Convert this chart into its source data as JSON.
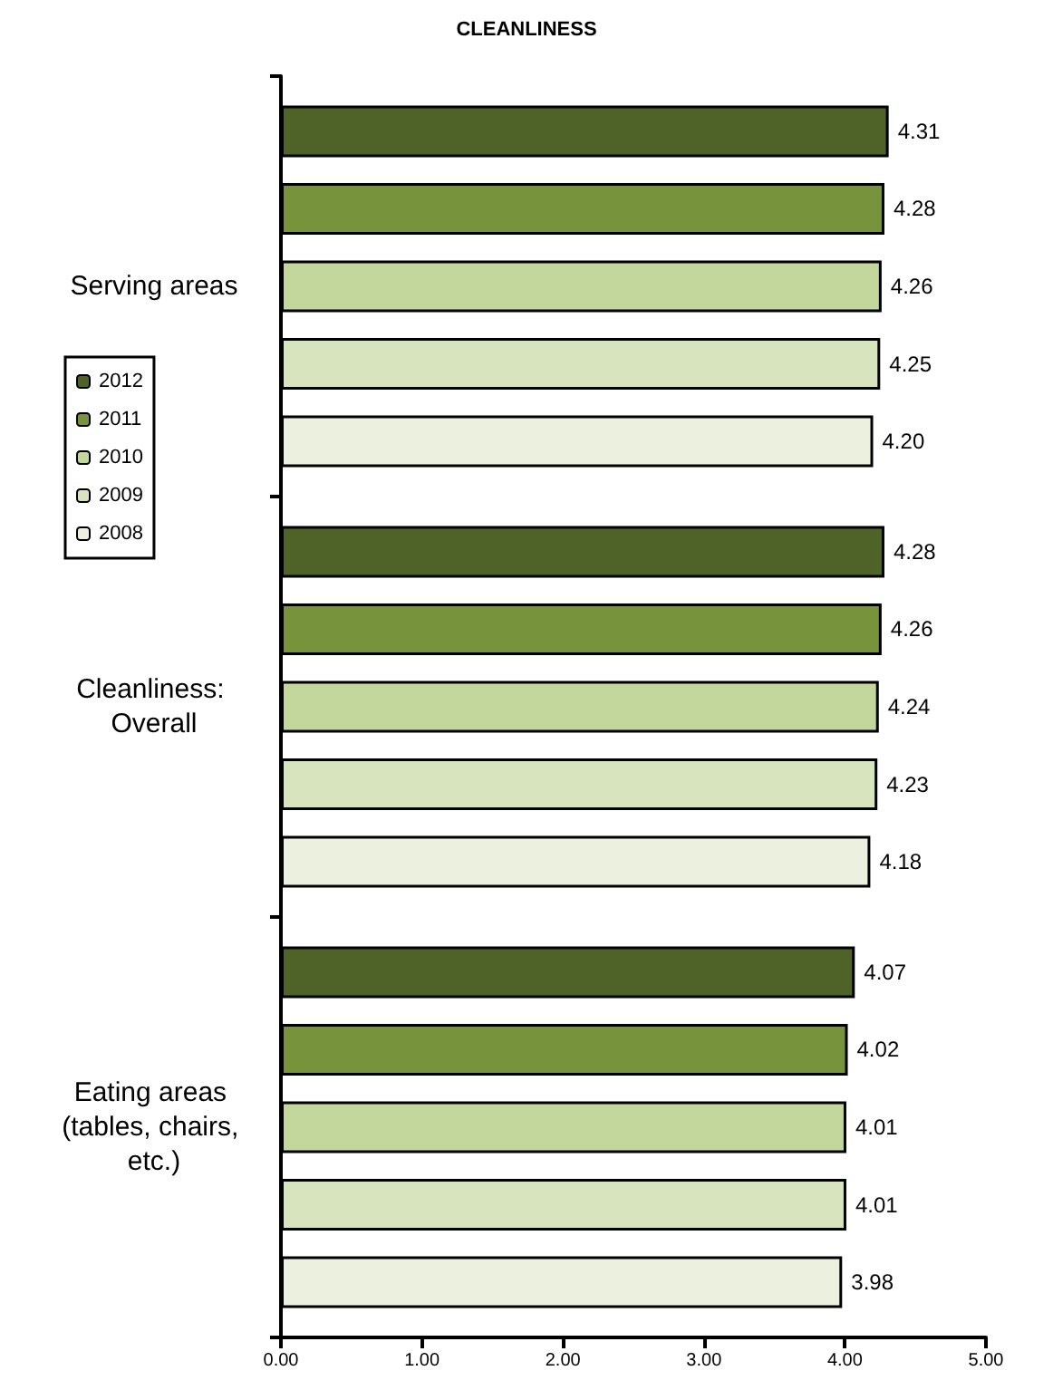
{
  "chart_data": {
    "type": "bar",
    "orientation": "horizontal",
    "title": "CLEANLINESS",
    "categories": [
      "Serving areas",
      "Cleanliness: Overall",
      "Eating areas (tables, chairs, etc.)"
    ],
    "series": [
      {
        "name": "2012",
        "color": "#4f6228",
        "values": [
          4.31,
          4.28,
          4.07
        ],
        "value_labels": [
          "4.31",
          "4.28",
          "4.07"
        ]
      },
      {
        "name": "2011",
        "color": "#77933c",
        "values": [
          4.28,
          4.26,
          4.02
        ],
        "value_labels": [
          "4.28",
          "4.26",
          "4.02"
        ]
      },
      {
        "name": "2010",
        "color": "#c3d69b",
        "values": [
          4.26,
          4.24,
          4.01
        ],
        "value_labels": [
          "4.26",
          "4.24",
          "4.01"
        ]
      },
      {
        "name": "2009",
        "color": "#d7e4bd",
        "values": [
          4.25,
          4.23,
          4.01
        ],
        "value_labels": [
          "4.25",
          "4.23",
          "4.01"
        ]
      },
      {
        "name": "2008",
        "color": "#ebf1de",
        "values": [
          4.2,
          4.18,
          3.98
        ],
        "value_labels": [
          "4.20",
          "4.18",
          "3.98"
        ]
      }
    ],
    "xlim": [
      0,
      5
    ],
    "xticks": [
      {
        "value": 0,
        "label": "0.00"
      },
      {
        "value": 1,
        "label": "1.00"
      },
      {
        "value": 2,
        "label": "2.00"
      },
      {
        "value": 3,
        "label": "3.00"
      },
      {
        "value": 4,
        "label": "4.00"
      },
      {
        "value": 5,
        "label": "5.00"
      }
    ],
    "grid": false,
    "legend": "left"
  }
}
